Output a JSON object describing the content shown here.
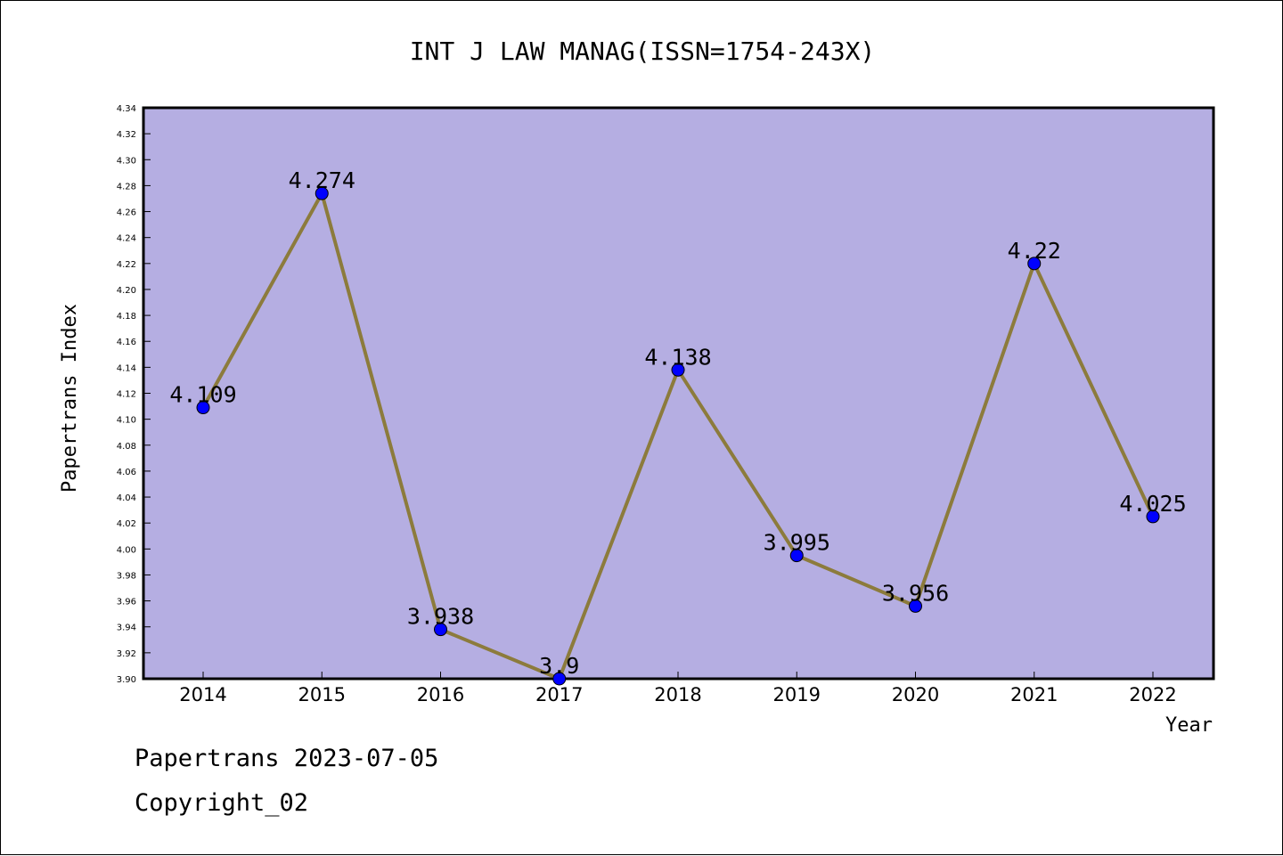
{
  "chart_data": {
    "type": "line",
    "title": "INT J LAW MANAG(ISSN=1754-243X)",
    "xlabel": "Year",
    "ylabel": "Papertrans Index",
    "categories": [
      "2014",
      "2015",
      "2016",
      "2017",
      "2018",
      "2019",
      "2020",
      "2021",
      "2022"
    ],
    "values": [
      4.109,
      4.274,
      3.938,
      3.9,
      4.138,
      3.995,
      3.956,
      4.22,
      4.025
    ],
    "data_labels": [
      "4.109",
      "4.274",
      "3.938",
      "3.9",
      "4.138",
      "3.995",
      "3.956",
      "4.22",
      "4.025"
    ],
    "ylim": [
      3.9,
      4.34
    ],
    "yticks": [
      "3.90",
      "3.92",
      "3.94",
      "3.96",
      "3.98",
      "4.00",
      "4.02",
      "4.04",
      "4.06",
      "4.08",
      "4.10",
      "4.12",
      "4.14",
      "4.16",
      "4.18",
      "4.20",
      "4.22",
      "4.24",
      "4.26",
      "4.28",
      "4.30",
      "4.32",
      "4.34"
    ],
    "grid": false,
    "plot_background": "#b5aee2",
    "line_color": "#8c7b3c",
    "marker_color": "#0000ff"
  },
  "footer": {
    "line1": "Papertrans 2023-07-05",
    "line2": "Copyright_02"
  }
}
